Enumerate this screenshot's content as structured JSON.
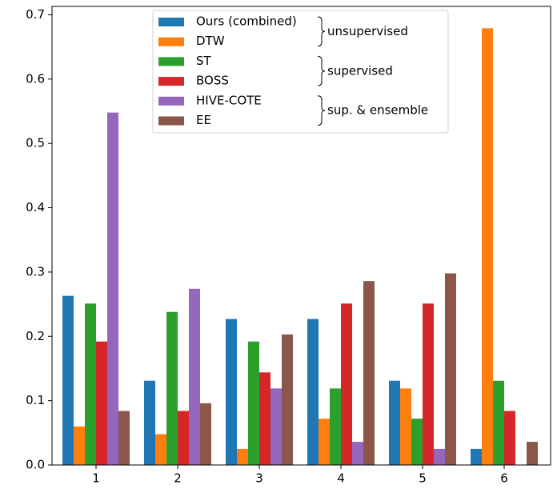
{
  "chart_data": {
    "type": "bar",
    "categories": [
      "1",
      "2",
      "3",
      "4",
      "5",
      "6"
    ],
    "series": [
      {
        "name": "Ours (combined)",
        "color": "#1f77b4",
        "values": [
          0.263,
          0.131,
          0.227,
          0.227,
          0.131,
          0.025
        ]
      },
      {
        "name": "DTW",
        "color": "#ff7f0e",
        "values": [
          0.06,
          0.048,
          0.025,
          0.072,
          0.119,
          0.679
        ]
      },
      {
        "name": "ST",
        "color": "#2ca02c",
        "values": [
          0.251,
          0.238,
          0.192,
          0.119,
          0.072,
          0.131
        ]
      },
      {
        "name": "BOSS",
        "color": "#d62728",
        "values": [
          0.192,
          0.084,
          0.144,
          0.251,
          0.251,
          0.084
        ]
      },
      {
        "name": "HIVE-COTE",
        "color": "#9467bd",
        "values": [
          0.548,
          0.274,
          0.119,
          0.036,
          0.025,
          0
        ]
      },
      {
        "name": "EE",
        "color": "#8c564b",
        "values": [
          0.084,
          0.096,
          0.203,
          0.286,
          0.298,
          0.036
        ]
      }
    ],
    "legend_groups": [
      "unsupervised",
      "supervised",
      "sup. & ensemble"
    ],
    "ylim": [
      0,
      0.713
    ],
    "yticks": [
      {
        "value": 0,
        "label": "0.0"
      },
      0.1,
      0.2,
      0.3,
      0.4,
      0.5,
      0.6,
      0.7
    ],
    "legend": "upper center"
  }
}
